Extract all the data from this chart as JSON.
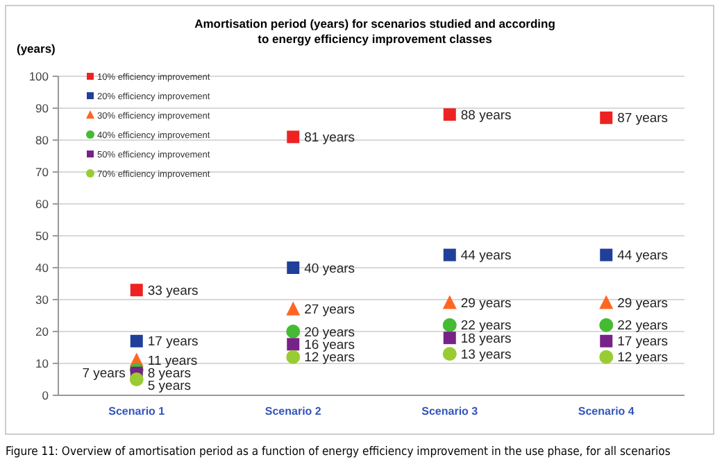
{
  "chart_data": {
    "type": "scatter",
    "title": "Amortisation period (years) for scenarios studied and according to energy efficiency improvement classes",
    "ylabel": "(years)",
    "categories": [
      "Scenario 1",
      "Scenario 2",
      "Scenario 3",
      "Scenario 4"
    ],
    "ylim": [
      0,
      100
    ],
    "yticks": [
      0,
      10,
      20,
      30,
      40,
      50,
      60,
      70,
      80,
      90,
      100
    ],
    "grid": "y",
    "legend": "top left",
    "series": [
      {
        "name": "10% efficiency improvement",
        "color": "#ee2222",
        "marker": "square",
        "values": [
          33,
          81,
          88,
          87
        ],
        "value_labels": [
          "33 years",
          "81 years",
          "88 years",
          "87 years"
        ]
      },
      {
        "name": "20% efficiency improvement",
        "color": "#1f3f99",
        "marker": "square",
        "values": [
          17,
          40,
          44,
          44
        ],
        "value_labels": [
          "17 years",
          "40 years",
          "44 years",
          "44 years"
        ]
      },
      {
        "name": "30% efficiency improvement",
        "color": "#ff6622",
        "marker": "triangle",
        "values": [
          11,
          27,
          29,
          29
        ],
        "value_labels": [
          "11 years",
          "27 years",
          "29 years",
          "29 years"
        ]
      },
      {
        "name": "40% efficiency improvement",
        "color": "#44bb33",
        "marker": "circle",
        "values": [
          8,
          20,
          22,
          22
        ],
        "value_labels": [
          "8 years",
          "20 years",
          "22 years",
          "22 years"
        ]
      },
      {
        "name": "50% efficiency improvement",
        "color": "#772288",
        "marker": "square",
        "values": [
          7,
          16,
          18,
          17
        ],
        "value_labels": [
          "7 years",
          "16 years",
          "18 years",
          "17 years"
        ]
      },
      {
        "name": "70% efficiency improvement",
        "color": "#99cc33",
        "marker": "circle",
        "values": [
          5,
          12,
          13,
          12
        ],
        "value_labels": [
          "5 years",
          "12 years",
          "13 years",
          "12 years"
        ]
      }
    ],
    "annotations": [
      "Figure 11: Overview of amortisation period as a function of energy efficiency improvement in the use phase, for all scenarios"
    ]
  }
}
